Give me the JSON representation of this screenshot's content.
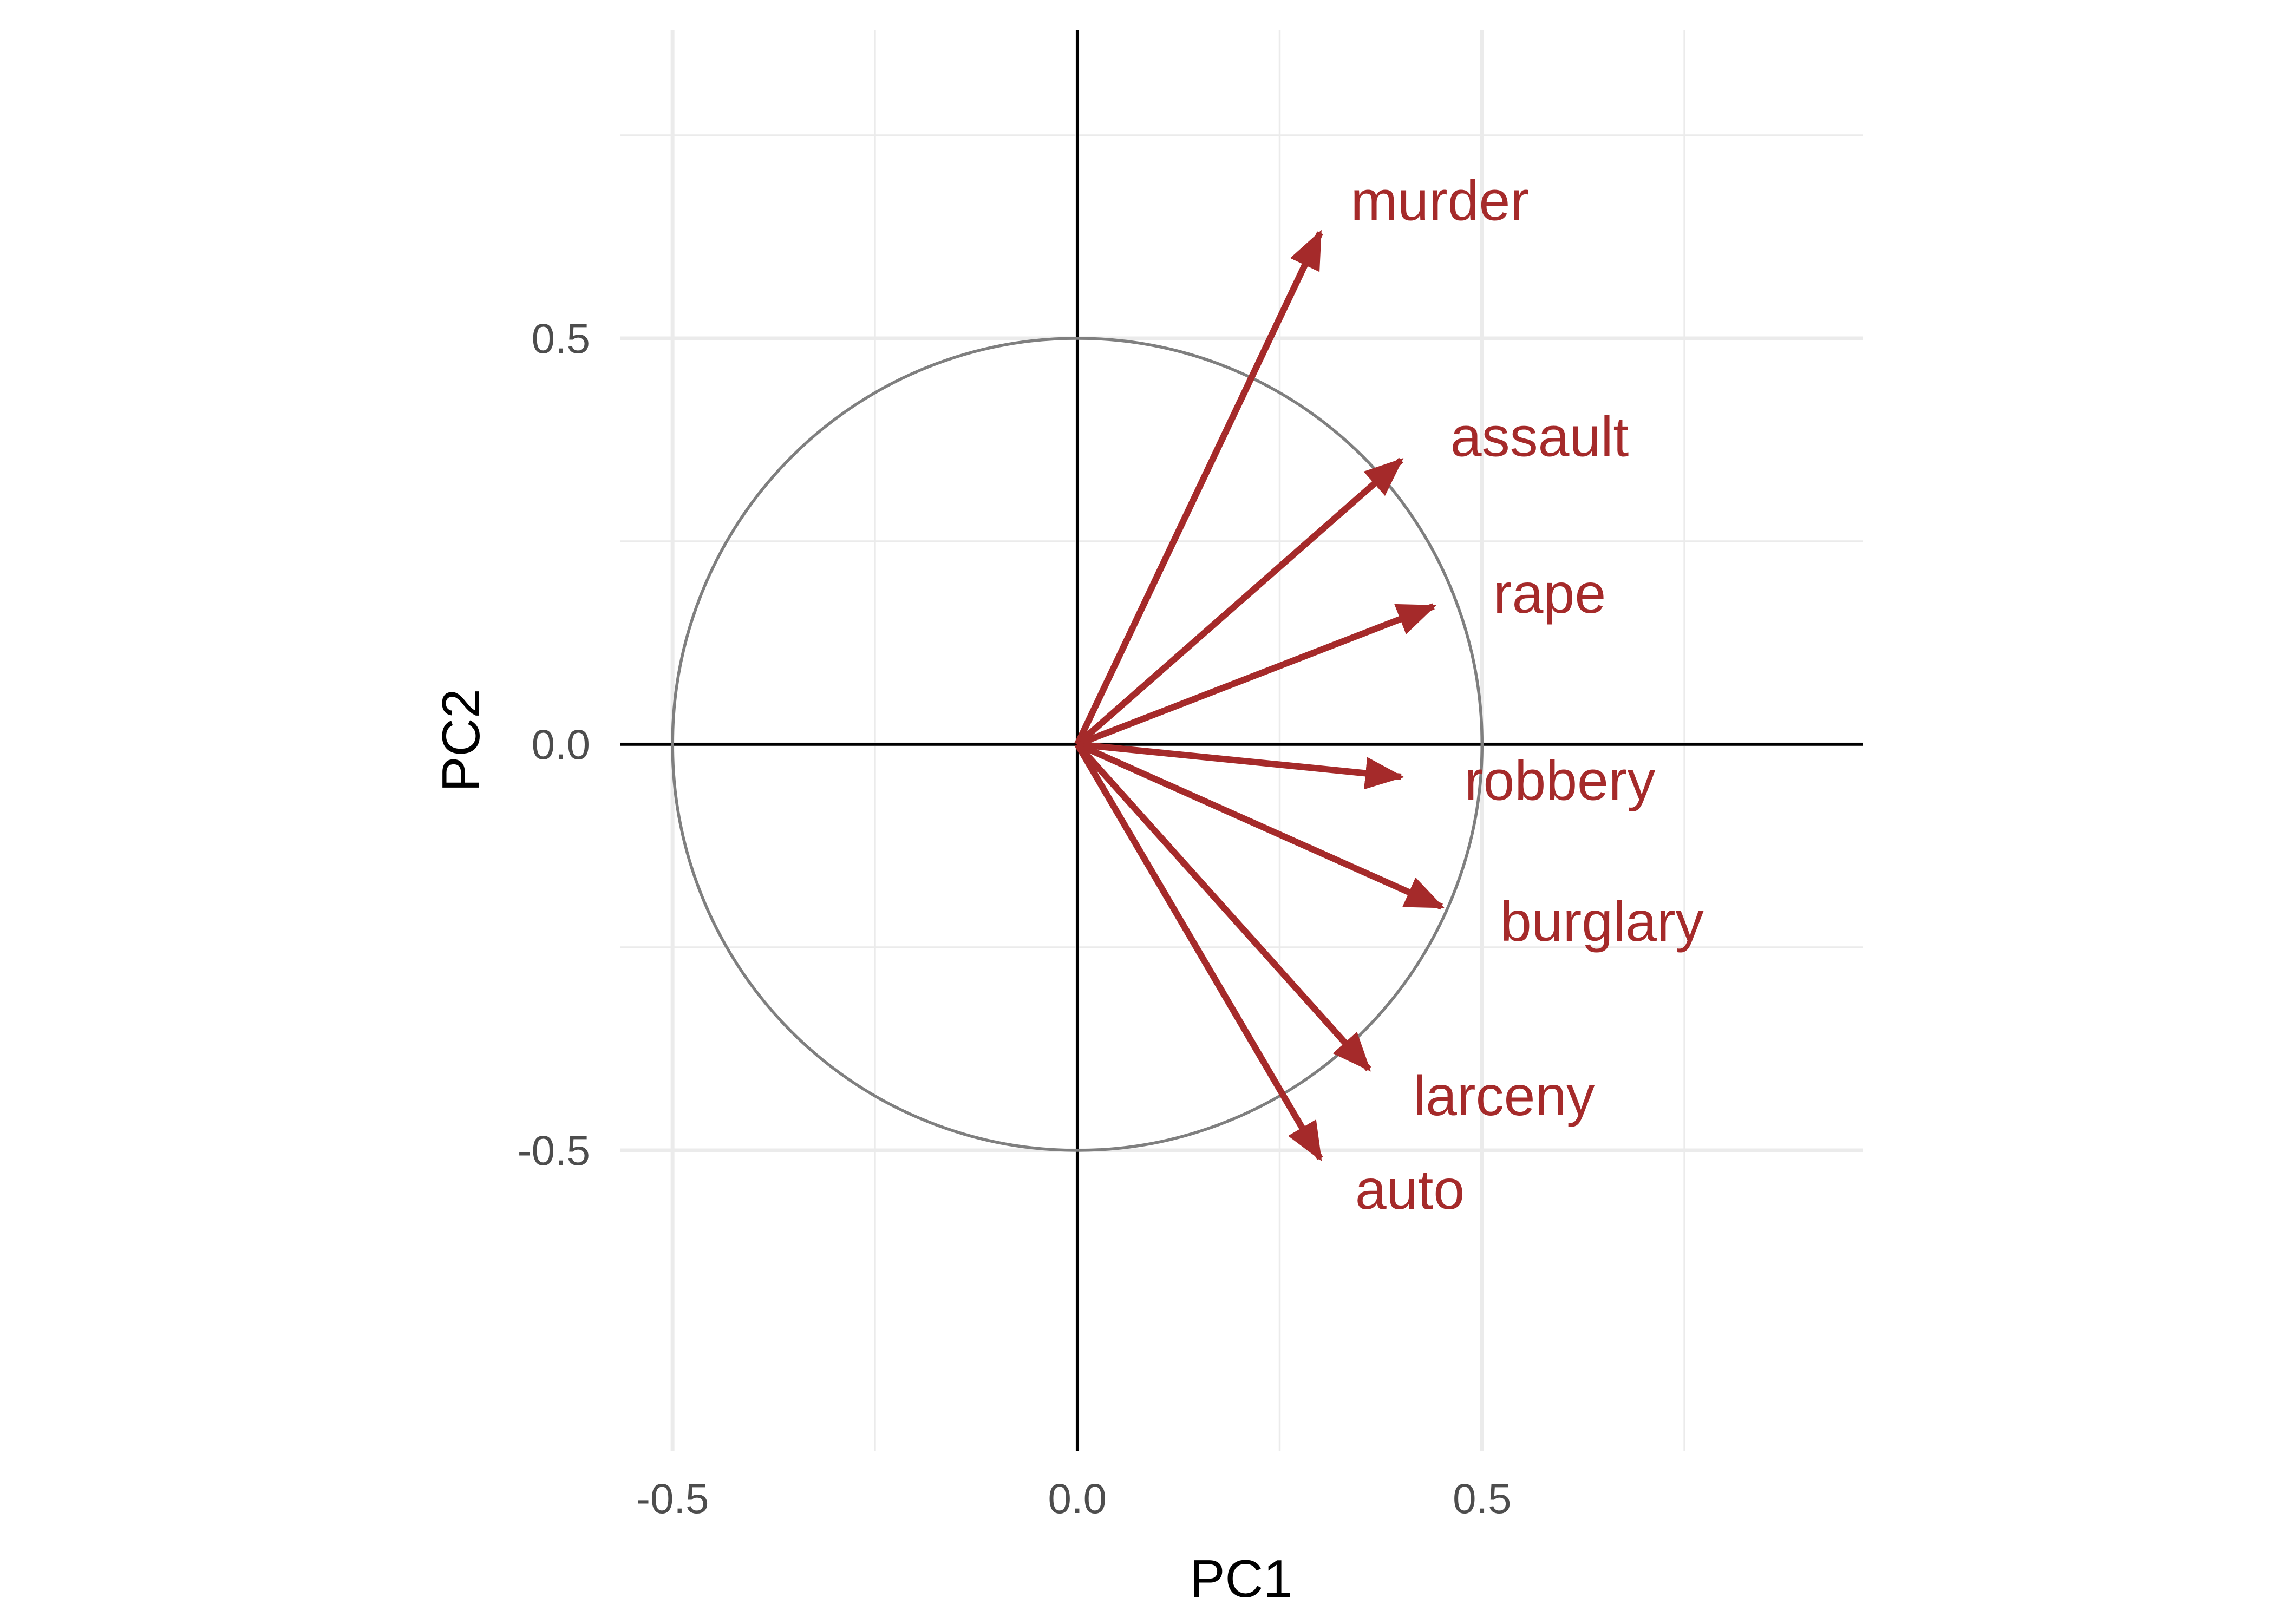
{
  "chart_data": {
    "type": "scatter",
    "subtype": "pca-loadings-biplot",
    "title": "",
    "xlabel": "PC1",
    "ylabel": "PC2",
    "xlim": [
      -0.565,
      0.97
    ],
    "ylim": [
      -0.87,
      0.88
    ],
    "x_ticks": [
      {
        "value": -0.5,
        "label": "-0.5"
      },
      {
        "value": 0.0,
        "label": "0.0"
      },
      {
        "value": 0.5,
        "label": "0.5"
      }
    ],
    "y_ticks": [
      {
        "value": 0.5,
        "label": "0.5"
      },
      {
        "value": 0.0,
        "label": "0.0"
      },
      {
        "value": -0.5,
        "label": "-0.5"
      }
    ],
    "minor_breaks": [
      -0.25,
      0.25,
      0.75
    ],
    "grid": true,
    "reference_circle_radius": 0.5,
    "arrow_color": "#a52a2a",
    "loadings": [
      {
        "name": "murder",
        "x": 0.3,
        "y": 0.63
      },
      {
        "name": "assault",
        "x": 0.4,
        "y": 0.35
      },
      {
        "name": "rape",
        "x": 0.44,
        "y": 0.17
      },
      {
        "name": "robbery",
        "x": 0.4,
        "y": -0.04
      },
      {
        "name": "burglary",
        "x": 0.45,
        "y": -0.2
      },
      {
        "name": "larceny",
        "x": 0.36,
        "y": -0.4
      },
      {
        "name": "auto",
        "x": 0.3,
        "y": -0.51
      }
    ]
  }
}
